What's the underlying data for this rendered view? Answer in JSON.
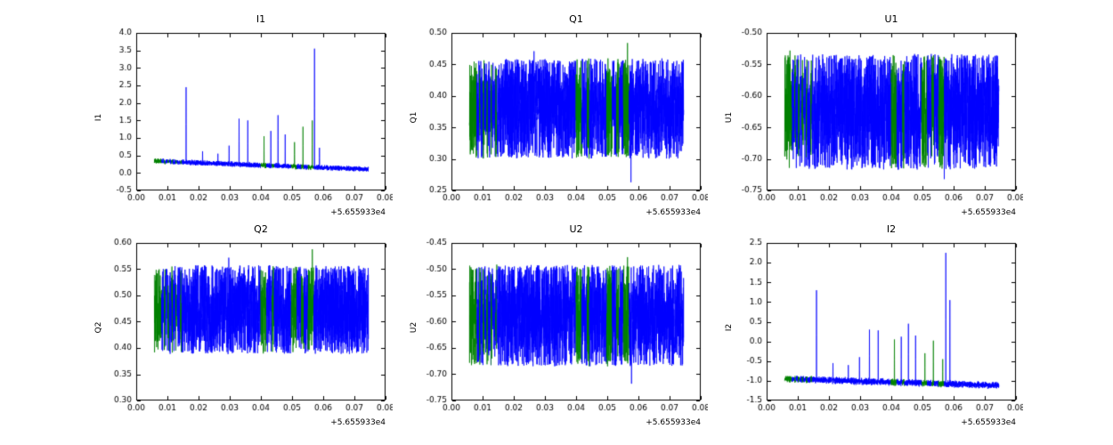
{
  "figure": {
    "background": "#ffffff",
    "colors": {
      "line": "#0000ff",
      "highlight": "#008000",
      "frame": "#000000",
      "text": "#000000"
    },
    "offset_label": "+5.655933e4",
    "highlight_intervals": [
      [
        0.0058,
        0.0082
      ],
      [
        0.009,
        0.0094
      ],
      [
        0.0102,
        0.0106
      ],
      [
        0.0114,
        0.0118
      ],
      [
        0.0127,
        0.0131
      ],
      [
        0.0142,
        0.0146
      ],
      [
        0.04,
        0.0418
      ],
      [
        0.0436,
        0.0443
      ],
      [
        0.0498,
        0.0516
      ],
      [
        0.053,
        0.0538
      ],
      [
        0.0552,
        0.057
      ]
    ]
  },
  "chart_data": [
    {
      "type": "line",
      "title": "I1",
      "ylabel": "I1",
      "x_offset": "+5.655933e4",
      "xlim": [
        0.0,
        0.08
      ],
      "xticks": [
        0.0,
        0.01,
        0.02,
        0.03,
        0.04,
        0.05,
        0.06,
        0.07,
        0.08
      ],
      "xtick_decimals": 2,
      "ylim": [
        -0.5,
        4.0
      ],
      "yticks": [
        -0.5,
        0.0,
        0.5,
        1.0,
        1.5,
        2.0,
        2.5,
        3.0,
        3.5,
        4.0
      ],
      "ytick_decimals": 1,
      "x_data_range": [
        0.0058,
        0.0745
      ],
      "seed": 11,
      "grid": false,
      "series": {
        "kind": "spiky",
        "baseline_start": 0.34,
        "baseline_end": 0.1,
        "noise": 0.06,
        "spikes": [
          [
            0.016,
            2.45
          ],
          [
            0.0213,
            0.62
          ],
          [
            0.0262,
            0.55
          ],
          [
            0.0298,
            0.78
          ],
          [
            0.033,
            1.55
          ],
          [
            0.0358,
            1.5
          ],
          [
            0.041,
            1.05
          ],
          [
            0.0432,
            1.2
          ],
          [
            0.0455,
            1.65
          ],
          [
            0.0478,
            1.1
          ],
          [
            0.0508,
            0.88
          ],
          [
            0.0535,
            1.32
          ],
          [
            0.0565,
            1.5
          ],
          [
            0.0572,
            3.55
          ],
          [
            0.0588,
            0.72
          ]
        ]
      }
    },
    {
      "type": "line",
      "title": "Q1",
      "ylabel": "Q1",
      "x_offset": "+5.655933e4",
      "xlim": [
        0.0,
        0.08
      ],
      "xticks": [
        0.0,
        0.01,
        0.02,
        0.03,
        0.04,
        0.05,
        0.06,
        0.07,
        0.08
      ],
      "xtick_decimals": 2,
      "ylim": [
        0.25,
        0.5
      ],
      "yticks": [
        0.25,
        0.3,
        0.35,
        0.4,
        0.45,
        0.5
      ],
      "ytick_decimals": 2,
      "x_data_range": [
        0.0058,
        0.0745
      ],
      "seed": 22,
      "grid": false,
      "series": {
        "kind": "band",
        "center": 0.38,
        "half_width": 0.078,
        "outliers": [
          [
            0.0265,
            0.471
          ],
          [
            0.0565,
            0.484
          ],
          [
            0.0576,
            0.263
          ]
        ]
      }
    },
    {
      "type": "line",
      "title": "U1",
      "ylabel": "U1",
      "x_offset": "+5.655933e4",
      "xlim": [
        0.0,
        0.08
      ],
      "xticks": [
        0.0,
        0.01,
        0.02,
        0.03,
        0.04,
        0.05,
        0.06,
        0.07,
        0.08
      ],
      "xtick_decimals": 2,
      "ylim": [
        -0.75,
        -0.5
      ],
      "yticks": [
        -0.75,
        -0.7,
        -0.65,
        -0.6,
        -0.55,
        -0.5
      ],
      "ytick_decimals": 2,
      "x_data_range": [
        0.0058,
        0.0745
      ],
      "seed": 33,
      "grid": false,
      "series": {
        "kind": "band",
        "center": -0.625,
        "half_width": 0.09,
        "outliers": [
          [
            0.0075,
            -0.528
          ],
          [
            0.057,
            -0.732
          ]
        ]
      }
    },
    {
      "type": "line",
      "title": "Q2",
      "ylabel": "Q2",
      "x_offset": "+5.655933e4",
      "xlim": [
        0.0,
        0.08
      ],
      "xticks": [
        0.0,
        0.01,
        0.02,
        0.03,
        0.04,
        0.05,
        0.06,
        0.07,
        0.08
      ],
      "xtick_decimals": 2,
      "ylim": [
        0.3,
        0.6
      ],
      "yticks": [
        0.3,
        0.35,
        0.4,
        0.45,
        0.5,
        0.55,
        0.6
      ],
      "ytick_decimals": 2,
      "x_data_range": [
        0.0058,
        0.0745
      ],
      "seed": 44,
      "grid": false,
      "series": {
        "kind": "band",
        "center": 0.473,
        "half_width": 0.083,
        "outliers": [
          [
            0.0297,
            0.572
          ],
          [
            0.0565,
            0.588
          ]
        ]
      }
    },
    {
      "type": "line",
      "title": "U2",
      "ylabel": "U2",
      "x_offset": "+5.655933e4",
      "xlim": [
        0.0,
        0.08
      ],
      "xticks": [
        0.0,
        0.01,
        0.02,
        0.03,
        0.04,
        0.05,
        0.06,
        0.07,
        0.08
      ],
      "xtick_decimals": 2,
      "ylim": [
        -0.75,
        -0.45
      ],
      "yticks": [
        -0.75,
        -0.7,
        -0.65,
        -0.6,
        -0.55,
        -0.5,
        -0.45
      ],
      "ytick_decimals": 2,
      "x_data_range": [
        0.0058,
        0.0745
      ],
      "seed": 55,
      "grid": false,
      "series": {
        "kind": "band",
        "center": -0.588,
        "half_width": 0.095,
        "outliers": [
          [
            0.0565,
            -0.477
          ],
          [
            0.0578,
            -0.718
          ]
        ]
      }
    },
    {
      "type": "line",
      "title": "I2",
      "ylabel": "I2",
      "x_offset": "+5.655933e4",
      "xlim": [
        0.0,
        0.08
      ],
      "xticks": [
        0.0,
        0.01,
        0.02,
        0.03,
        0.04,
        0.05,
        0.06,
        0.07,
        0.08
      ],
      "xtick_decimals": 2,
      "ylim": [
        -1.5,
        2.5
      ],
      "yticks": [
        -1.5,
        -1.0,
        -0.5,
        0.0,
        0.5,
        1.0,
        1.5,
        2.0,
        2.5
      ],
      "ytick_decimals": 1,
      "x_data_range": [
        0.0058,
        0.0745
      ],
      "seed": 66,
      "grid": false,
      "series": {
        "kind": "spiky",
        "baseline_start": -0.95,
        "baseline_end": -1.12,
        "noise": 0.07,
        "spikes": [
          [
            0.016,
            1.3
          ],
          [
            0.0213,
            -0.55
          ],
          [
            0.0262,
            -0.6
          ],
          [
            0.0298,
            -0.4
          ],
          [
            0.033,
            0.3
          ],
          [
            0.0358,
            0.28
          ],
          [
            0.041,
            0.05
          ],
          [
            0.0432,
            0.12
          ],
          [
            0.0455,
            0.45
          ],
          [
            0.0478,
            0.15
          ],
          [
            0.0508,
            -0.3
          ],
          [
            0.0535,
            0.02
          ],
          [
            0.0565,
            -0.45
          ],
          [
            0.0575,
            2.25
          ],
          [
            0.0588,
            1.05
          ]
        ]
      }
    }
  ]
}
